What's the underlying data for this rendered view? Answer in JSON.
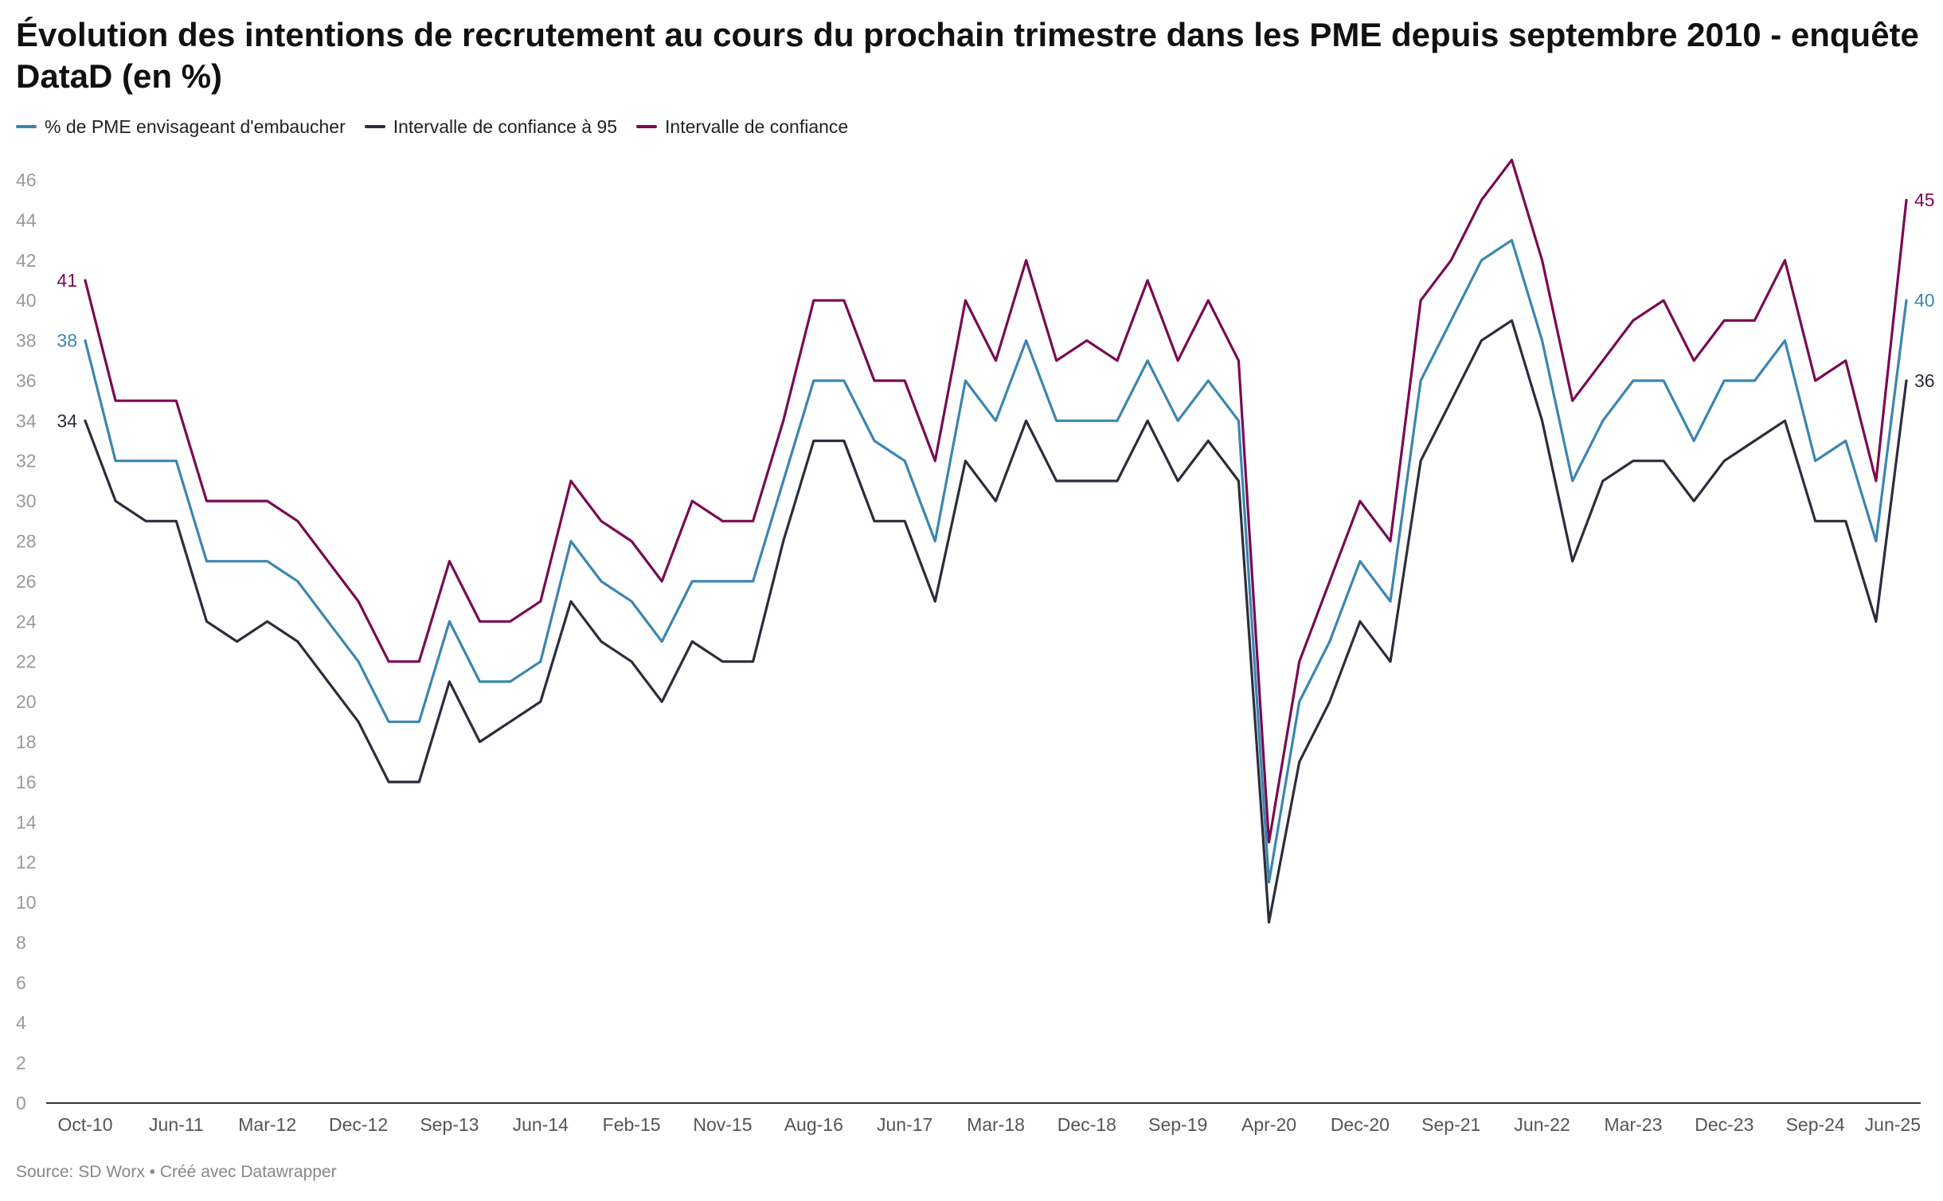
{
  "title": "Évolution des intentions de recrutement au cours du prochain trimestre dans les PME depuis septembre 2010 - enquête DataD (en %)",
  "source": "Source: SD Worx • Créé avec Datawrapper",
  "chart_data": {
    "type": "line",
    "title": "Évolution des intentions de recrutement au cours du prochain trimestre dans les PME depuis septembre 2010 - enquête DataD (en %)",
    "ylim": [
      0,
      46
    ],
    "yticks": [
      "0",
      "2",
      "4",
      "6",
      "8",
      "10",
      "12",
      "14",
      "16",
      "18",
      "20",
      "22",
      "24",
      "26",
      "28",
      "30",
      "32",
      "34",
      "36",
      "38",
      "40",
      "42",
      "44",
      "46"
    ],
    "grid": false,
    "legend_position": "top-left",
    "x_tick_labels": [
      "Oct-10",
      "Jun-11",
      "Mar-12",
      "Dec-12",
      "Sep-13",
      "Jun-14",
      "Feb-15",
      "Nov-15",
      "Aug-16",
      "Jun-17",
      "Mar-18",
      "Dec-18",
      "Sep-19",
      "Apr-20",
      "Dec-20",
      "Sep-21",
      "Jun-22",
      "Mar-23",
      "Dec-23",
      "Sep-24",
      "Jun-25"
    ],
    "x_tick_positions": [
      0,
      3,
      6,
      9,
      12,
      15,
      18,
      21,
      24,
      27,
      30,
      33,
      36,
      39,
      42,
      45,
      48,
      51,
      54,
      57,
      60
    ],
    "series": [
      {
        "name": "% de PME envisageant d'embaucher",
        "color": "#3b86b0",
        "end_label": "40",
        "start_label": "38",
        "values": [
          38,
          32,
          32,
          32,
          27,
          27,
          27,
          26,
          24,
          22,
          19,
          19,
          24,
          21,
          21,
          22,
          28,
          26,
          25,
          23,
          26,
          26,
          26,
          31,
          36,
          36,
          33,
          32,
          28,
          36,
          34,
          38,
          34,
          34,
          34,
          37,
          34,
          36,
          34,
          11,
          20,
          23,
          27,
          25,
          36,
          39,
          42,
          43,
          38,
          31,
          34,
          36,
          36,
          33,
          36,
          36,
          38,
          32,
          33,
          28,
          40
        ]
      },
      {
        "name": "Intervalle de confiance à 95",
        "color": "#2b2e3a",
        "end_label": "36",
        "start_label": "34",
        "values": [
          34,
          30,
          29,
          29,
          24,
          23,
          24,
          23,
          21,
          19,
          16,
          16,
          21,
          18,
          19,
          20,
          25,
          23,
          22,
          20,
          23,
          22,
          22,
          28,
          33,
          33,
          29,
          29,
          25,
          32,
          30,
          34,
          31,
          31,
          31,
          34,
          31,
          33,
          31,
          9,
          17,
          20,
          24,
          22,
          32,
          35,
          38,
          39,
          34,
          27,
          31,
          32,
          32,
          30,
          32,
          33,
          34,
          29,
          29,
          24,
          36
        ]
      },
      {
        "name": "Intervalle de confiance",
        "color": "#7a0a52",
        "end_label": "45",
        "start_label": "41",
        "values": [
          41,
          35,
          35,
          35,
          30,
          30,
          30,
          29,
          27,
          25,
          22,
          22,
          27,
          24,
          24,
          25,
          31,
          29,
          28,
          26,
          30,
          29,
          29,
          34,
          40,
          40,
          36,
          36,
          32,
          40,
          37,
          42,
          37,
          38,
          37,
          41,
          37,
          40,
          37,
          13,
          22,
          26,
          30,
          28,
          40,
          42,
          45,
          47,
          42,
          35,
          37,
          39,
          40,
          37,
          39,
          39,
          42,
          36,
          37,
          31,
          45
        ]
      }
    ]
  }
}
